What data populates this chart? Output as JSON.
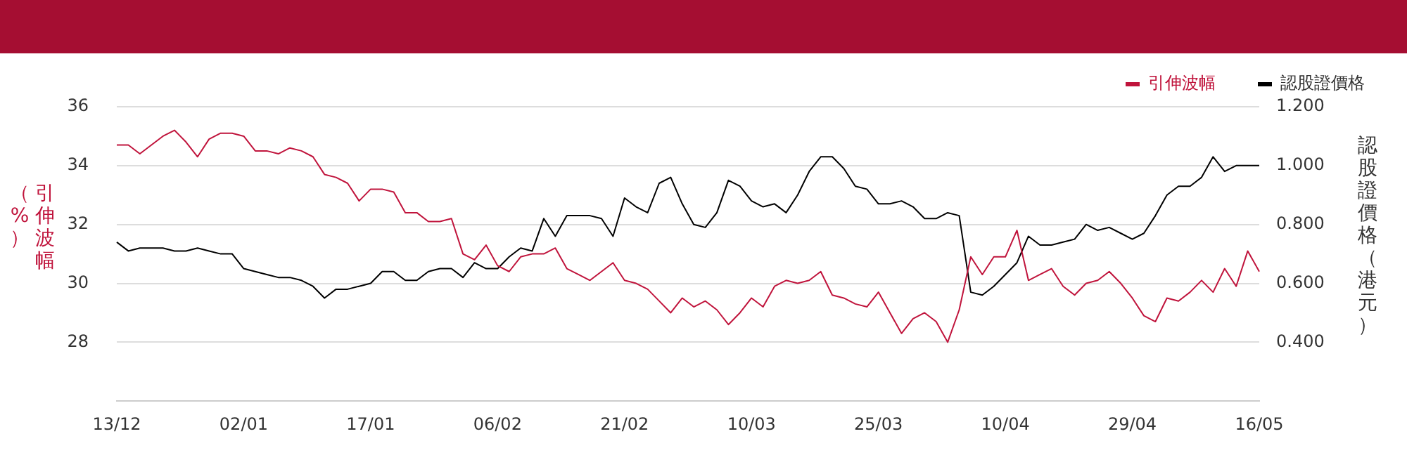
{
  "chart_data": {
    "type": "line",
    "ylabel": "引伸波幅（%）",
    "y2label": "認股證價格（港元）",
    "categories": [
      "13/12",
      null,
      null,
      null,
      null,
      null,
      null,
      null,
      null,
      null,
      null,
      "02/01",
      null,
      null,
      null,
      null,
      null,
      null,
      null,
      null,
      null,
      null,
      "17/01",
      null,
      null,
      null,
      null,
      null,
      null,
      null,
      null,
      null,
      null,
      "06/02",
      null,
      null,
      null,
      null,
      null,
      null,
      null,
      null,
      null,
      null,
      "21/02",
      null,
      null,
      null,
      null,
      null,
      null,
      null,
      null,
      null,
      null,
      "10/03",
      null,
      null,
      null,
      null,
      null,
      null,
      null,
      null,
      null,
      null,
      "25/03",
      null,
      null,
      null,
      null,
      null,
      null,
      null,
      null,
      null,
      null,
      "10/04",
      null,
      null,
      null,
      null,
      null,
      null,
      null,
      null,
      null,
      null,
      "29/04",
      null,
      null,
      null,
      null,
      null,
      null,
      null,
      null,
      null,
      null,
      "16/05"
    ],
    "series": [
      {
        "name": "引伸波幅",
        "color": "#c0143c",
        "values": [
          34.7,
          34.7,
          34.4,
          34.7,
          35.0,
          35.2,
          34.8,
          34.3,
          34.9,
          35.1,
          35.1,
          35.0,
          34.5,
          34.5,
          34.4,
          34.6,
          34.5,
          34.3,
          33.7,
          33.6,
          33.4,
          32.8,
          33.2,
          33.2,
          33.1,
          32.4,
          32.4,
          32.1,
          32.1,
          32.2,
          31.0,
          30.8,
          31.3,
          30.6,
          30.4,
          30.9,
          31.0,
          31.0,
          31.2,
          30.5,
          30.3,
          30.1,
          30.4,
          30.7,
          30.1,
          30.0,
          29.8,
          29.4,
          29.0,
          29.5,
          29.2,
          29.4,
          29.1,
          28.6,
          29.0,
          29.5,
          29.2,
          29.9,
          30.1,
          30.0,
          30.1,
          30.4,
          29.6,
          29.5,
          29.3,
          29.2,
          29.7,
          29.0,
          28.3,
          28.8,
          29.0,
          28.7,
          28.0,
          29.1,
          30.9,
          30.3,
          30.9,
          30.9,
          31.8,
          30.1,
          30.3,
          30.5,
          29.9,
          29.6,
          30.0,
          30.1,
          30.4,
          30.0,
          29.5,
          28.9,
          28.7,
          29.5,
          29.4,
          29.7,
          30.1,
          29.7,
          30.5,
          29.9,
          31.1,
          30.4
        ]
      },
      {
        "name": "認股證價格",
        "color": "#000000",
        "axis": "y2",
        "values": [
          0.74,
          0.71,
          0.72,
          0.72,
          0.72,
          0.71,
          0.71,
          0.72,
          0.71,
          0.7,
          0.7,
          0.65,
          0.64,
          0.63,
          0.62,
          0.62,
          0.61,
          0.59,
          0.55,
          0.58,
          0.58,
          0.59,
          0.6,
          0.64,
          0.64,
          0.61,
          0.61,
          0.64,
          0.65,
          0.65,
          0.62,
          0.67,
          0.65,
          0.65,
          0.69,
          0.72,
          0.71,
          0.82,
          0.76,
          0.83,
          0.83,
          0.83,
          0.82,
          0.76,
          0.89,
          0.86,
          0.84,
          0.94,
          0.96,
          0.87,
          0.8,
          0.79,
          0.84,
          0.95,
          0.93,
          0.88,
          0.86,
          0.87,
          0.84,
          0.9,
          0.98,
          1.03,
          1.03,
          0.99,
          0.93,
          0.92,
          0.87,
          0.87,
          0.88,
          0.86,
          0.82,
          0.82,
          0.84,
          0.83,
          0.57,
          0.56,
          0.59,
          0.63,
          0.67,
          0.76,
          0.73,
          0.73,
          0.74,
          0.75,
          0.8,
          0.78,
          0.79,
          0.77,
          0.75,
          0.77,
          0.83,
          0.9,
          0.93,
          0.93,
          0.96,
          1.03,
          0.98,
          1.0,
          1.0,
          1.0
        ]
      }
    ],
    "ylim": [
      26,
      36
    ],
    "yticks": [
      28,
      30,
      32,
      34,
      36
    ],
    "y2lim": [
      0.2,
      1.2
    ],
    "y2ticks": [
      {
        "value": 0.4,
        "label": "0.400"
      },
      {
        "value": 0.6,
        "label": "0.600"
      },
      {
        "value": 0.8,
        "label": "0.800"
      },
      {
        "value": 1.0,
        "label": "1.000"
      },
      {
        "value": 1.2,
        "label": "1.200"
      }
    ],
    "grid": "y",
    "legend": "top right"
  }
}
